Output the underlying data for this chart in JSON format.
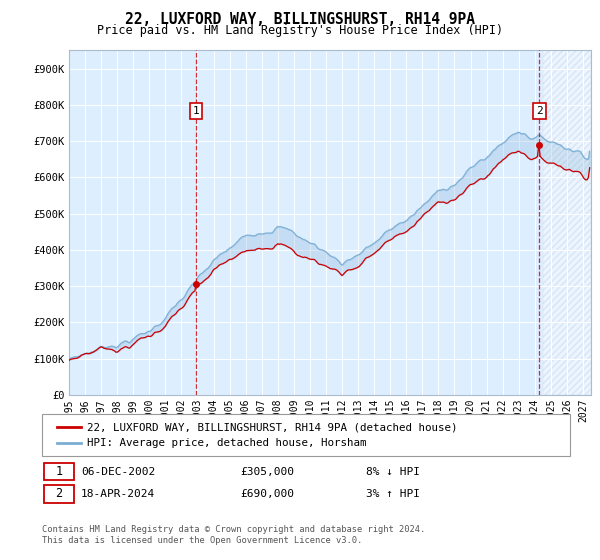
{
  "title": "22, LUXFORD WAY, BILLINGSHURST, RH14 9PA",
  "subtitle": "Price paid vs. HM Land Registry's House Price Index (HPI)",
  "legend_line1": "22, LUXFORD WAY, BILLINGSHURST, RH14 9PA (detached house)",
  "legend_line2": "HPI: Average price, detached house, Horsham",
  "annotation1_date": "06-DEC-2002",
  "annotation1_price": "£305,000",
  "annotation1_hpi": "8% ↓ HPI",
  "annotation2_date": "18-APR-2024",
  "annotation2_price": "£690,000",
  "annotation2_hpi": "3% ↑ HPI",
  "footer": "Contains HM Land Registry data © Crown copyright and database right 2024.\nThis data is licensed under the Open Government Licence v3.0.",
  "hpi_color": "#7aadd4",
  "price_color": "#cc0000",
  "grid_color": "#c8d8e8",
  "background_color": "#ffffff",
  "plot_bg_color": "#ddeeff",
  "hatch_color": "#c0d0e0",
  "ylim": [
    0,
    950000
  ],
  "yticks": [
    0,
    100000,
    200000,
    300000,
    400000,
    500000,
    600000,
    700000,
    800000,
    900000
  ],
  "ytick_labels": [
    "£0",
    "£100K",
    "£200K",
    "£300K",
    "£400K",
    "£500K",
    "£600K",
    "£700K",
    "£800K",
    "£900K"
  ],
  "xtick_labels": [
    "1995",
    "1996",
    "1997",
    "1998",
    "1999",
    "2000",
    "2001",
    "2002",
    "2003",
    "2004",
    "2005",
    "2006",
    "2007",
    "2008",
    "2009",
    "2010",
    "2011",
    "2012",
    "2013",
    "2014",
    "2015",
    "2016",
    "2017",
    "2018",
    "2019",
    "2020",
    "2021",
    "2022",
    "2023",
    "2024",
    "2025",
    "2026",
    "2027"
  ],
  "sale1_x": 2002.92,
  "sale1_y": 305000,
  "sale2_x": 2024.29,
  "sale2_y": 690000,
  "xmin": 1995.0,
  "xmax": 2027.5,
  "future_start": 2024.5
}
